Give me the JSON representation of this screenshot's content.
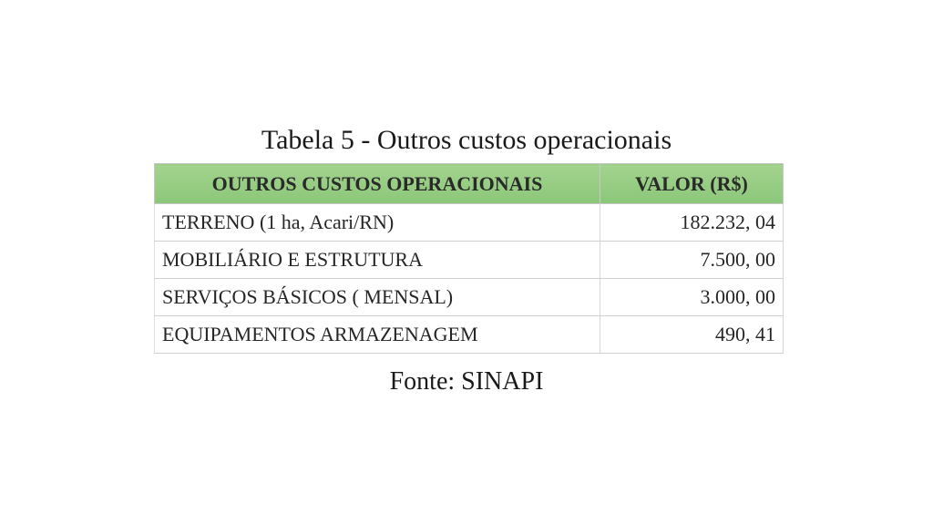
{
  "caption": "Tabela 5 -  Outros custos operacionais",
  "table": {
    "headers": [
      "OUTROS CUSTOS OPERACIONAIS",
      "VALOR (R$)"
    ],
    "rows": [
      {
        "item": "TERRENO (1 ha, Acari/RN)",
        "value": "182.232, 04"
      },
      {
        "item": "MOBILIÁRIO E ESTRUTURA",
        "value": "7.500, 00"
      },
      {
        "item": "SERVIÇOS BÁSICOS ( MENSAL)",
        "value": "3.000, 00"
      },
      {
        "item": "EQUIPAMENTOS ARMAZENAGEM",
        "value": "490, 41"
      }
    ],
    "header_color": "#92cd7d"
  },
  "source": "Fonte: SINAPI"
}
